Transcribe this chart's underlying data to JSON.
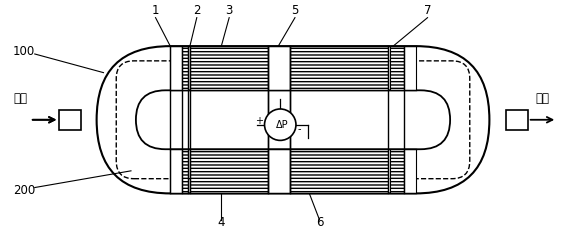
{
  "bg_color": "#ffffff",
  "line_color": "#000000",
  "label_100": "100",
  "label_200": "200",
  "label_flow_in": "流入",
  "label_flow_out": "流出",
  "label_1": "1",
  "label_2": "2",
  "label_3": "3",
  "label_4": "4",
  "label_5": "5",
  "label_6": "6",
  "label_7": "7",
  "label_dp": "ΔP",
  "label_plus": "+",
  "label_minus": "-"
}
